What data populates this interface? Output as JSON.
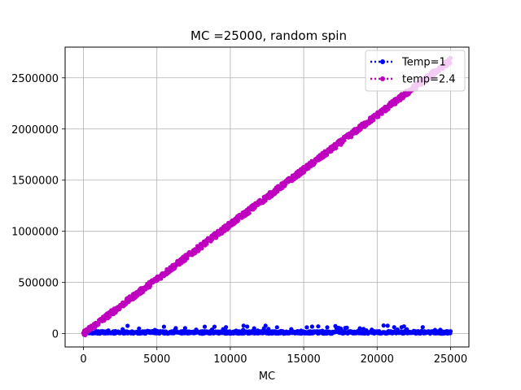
{
  "chart_data": {
    "type": "scatter",
    "title": "MC =25000, random spin",
    "xlabel": "MC",
    "ylabel": "",
    "xlim": [
      -1250,
      26250
    ],
    "ylim": [
      -130000,
      2800000
    ],
    "xticks": [
      0,
      5000,
      10000,
      15000,
      20000,
      25000
    ],
    "xtick_labels": [
      "0",
      "5000",
      "10000",
      "15000",
      "20000",
      "25000"
    ],
    "yticks": [
      0,
      500000,
      1000000,
      1500000,
      2000000,
      2500000
    ],
    "ytick_labels": [
      "0",
      "500000",
      "1000000",
      "1500000",
      "2000000",
      "2500000"
    ],
    "grid": true,
    "legend_position": "top-right",
    "series": [
      {
        "name": "Temp=1",
        "color": "#0000ff",
        "marker": "dot",
        "trend": "flat",
        "x": [
          0,
          25000
        ],
        "y": [
          0,
          0
        ],
        "noise": 40000
      },
      {
        "name": "temp=2.4",
        "color": "#bf00bf",
        "marker": "dot",
        "trend": "linear",
        "x": [
          0,
          25000
        ],
        "y": [
          0,
          2670000
        ],
        "noise": 40000
      }
    ]
  }
}
